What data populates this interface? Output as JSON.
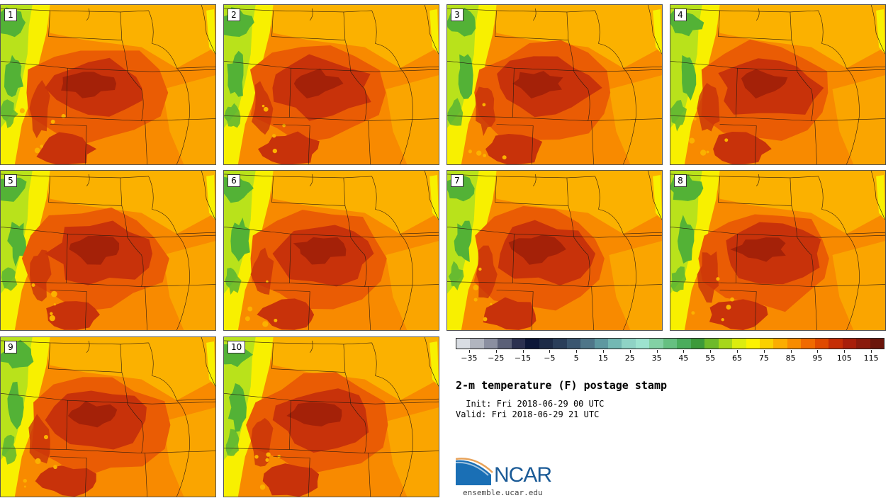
{
  "members": [
    "1",
    "2",
    "3",
    "4",
    "5",
    "6",
    "7",
    "8",
    "9",
    "10"
  ],
  "title": "2-m temperature (F) postage stamp",
  "init": " Init: Fri 2018-06-29 00 UTC",
  "valid": "Valid: Fri 2018-06-29 21 UTC",
  "logo": {
    "name": "NCAR",
    "url": "ensemble.ucar.edu"
  },
  "colorbar": {
    "ticks": [
      "-35",
      "-25",
      "-15",
      "-5",
      "5",
      "15",
      "25",
      "35",
      "45",
      "55",
      "65",
      "75",
      "85",
      "95",
      "105",
      "115"
    ],
    "range": [
      -40,
      120
    ],
    "colors": [
      "#d9dde3",
      "#b1b5bf",
      "#8b8fa0",
      "#5b6077",
      "#2c3150",
      "#0d1738",
      "#1d2b47",
      "#2a3e5a",
      "#3a5670",
      "#4f7689",
      "#5e98a0",
      "#73b8b3",
      "#8fd3c5",
      "#9de3cf",
      "#83d1a4",
      "#66c081",
      "#4aad5d",
      "#3c9a3a",
      "#6eba2a",
      "#a6d71a",
      "#dced0e",
      "#fbf200",
      "#fad000",
      "#fbad00",
      "#f88c00",
      "#f06a00",
      "#e04a00",
      "#c52d05",
      "#a81e0a",
      "#8a1a0c",
      "#6b150b"
    ]
  },
  "palette": {
    "green": "#53b236",
    "lime": "#b9e21b",
    "yellow": "#f8f000",
    "amber": "#fbb100",
    "orange": "#f88a00",
    "darkorange": "#ea5c04",
    "red": "#c8320a",
    "darkred": "#9e1e08"
  }
}
